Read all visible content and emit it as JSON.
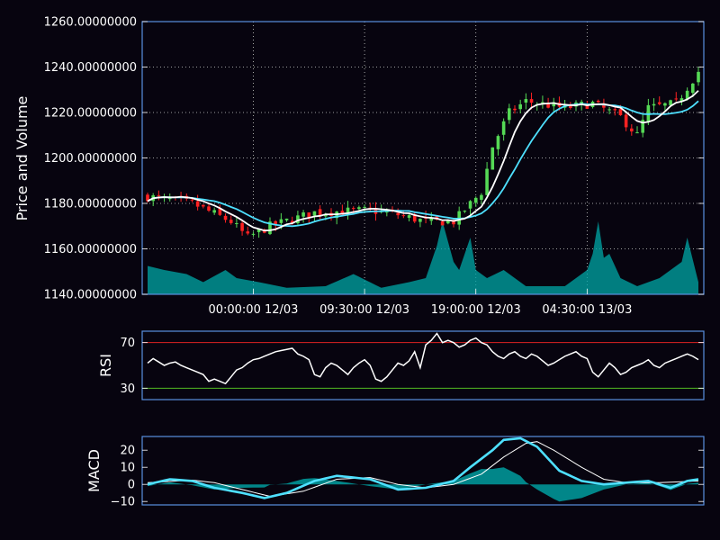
{
  "chart_data": [
    {
      "type": "candlestick",
      "ylabel": "Price and Volume",
      "ylim": [
        1140,
        1260
      ],
      "yticks": [
        1140,
        1160,
        1180,
        1200,
        1220,
        1240,
        1260
      ],
      "ytick_labels": [
        "1140.00000000",
        "1160.00000000",
        "1180.00000000",
        "1200.00000000",
        "1220.00000000",
        "1240.00000000",
        "1260.00000000"
      ],
      "xticks": [
        {
          "index": 19,
          "label": "00:00:00 12/03"
        },
        {
          "index": 39,
          "label": "09:30:00 12/03"
        },
        {
          "index": 59,
          "label": "19:00:00 12/03"
        },
        {
          "index": 79,
          "label": "04:30:00 13/03"
        }
      ],
      "candle_count": 100,
      "price_path": [
        [
          0,
          1183
        ],
        [
          8,
          1180
        ],
        [
          15,
          1172
        ],
        [
          18,
          1165
        ],
        [
          22,
          1170
        ],
        [
          30,
          1176
        ],
        [
          40,
          1177
        ],
        [
          45,
          1175
        ],
        [
          50,
          1172
        ],
        [
          55,
          1172
        ],
        [
          60,
          1185
        ],
        [
          62,
          1205
        ],
        [
          65,
          1220
        ],
        [
          68,
          1225
        ],
        [
          75,
          1222
        ],
        [
          80,
          1224
        ],
        [
          85,
          1218
        ],
        [
          88,
          1210
        ],
        [
          90,
          1222
        ],
        [
          95,
          1224
        ],
        [
          99,
          1238
        ]
      ],
      "ma_fast_color": "#ffffff",
      "ma_slow_color": "#4ee0ff",
      "up_color": "#55d955",
      "down_color": "#ff2222",
      "volume_color": "#00a7a7",
      "volume_path": [
        [
          0,
          0.35
        ],
        [
          3,
          0.3
        ],
        [
          7,
          0.25
        ],
        [
          10,
          0.15
        ],
        [
          14,
          0.3
        ],
        [
          16,
          0.2
        ],
        [
          20,
          0.15
        ],
        [
          25,
          0.08
        ],
        [
          32,
          0.1
        ],
        [
          37,
          0.25
        ],
        [
          42,
          0.08
        ],
        [
          47,
          0.15
        ],
        [
          50,
          0.2
        ],
        [
          52,
          0.6
        ],
        [
          53,
          0.9
        ],
        [
          55,
          0.4
        ],
        [
          56,
          0.3
        ],
        [
          57,
          0.5
        ],
        [
          58,
          0.7
        ],
        [
          59,
          0.3
        ],
        [
          61,
          0.2
        ],
        [
          64,
          0.3
        ],
        [
          68,
          0.1
        ],
        [
          75,
          0.1
        ],
        [
          79,
          0.3
        ],
        [
          80,
          0.5
        ],
        [
          81,
          0.9
        ],
        [
          82,
          0.45
        ],
        [
          83,
          0.5
        ],
        [
          85,
          0.2
        ],
        [
          88,
          0.1
        ],
        [
          92,
          0.2
        ],
        [
          96,
          0.4
        ],
        [
          97,
          0.7
        ],
        [
          99,
          0.15
        ]
      ]
    },
    {
      "type": "line",
      "ylabel": "RSI",
      "ylim": [
        20,
        80
      ],
      "yticks": [
        30,
        70
      ],
      "ytick_labels": [
        "30",
        "70"
      ],
      "upper_line": 70,
      "lower_line": 30,
      "upper_color": "#dd2222",
      "lower_color": "#55bb22",
      "line_color": "#ffffff",
      "values": [
        52,
        56,
        53,
        50,
        52,
        53,
        50,
        48,
        46,
        44,
        42,
        36,
        38,
        36,
        34,
        40,
        46,
        48,
        52,
        55,
        56,
        58,
        60,
        62,
        63,
        64,
        65,
        60,
        58,
        55,
        42,
        40,
        48,
        52,
        50,
        46,
        42,
        48,
        52,
        55,
        50,
        38,
        36,
        40,
        46,
        52,
        50,
        54,
        62,
        48,
        68,
        72,
        78,
        70,
        72,
        70,
        66,
        68,
        72,
        74,
        70,
        68,
        62,
        58,
        56,
        60,
        62,
        58,
        56,
        60,
        58,
        54,
        50,
        52,
        55,
        58,
        60,
        62,
        58,
        56,
        44,
        40,
        46,
        52,
        48,
        42,
        44,
        48,
        50,
        52,
        55,
        50,
        48,
        52,
        54,
        56,
        58,
        60,
        58,
        55
      ]
    },
    {
      "type": "line",
      "ylabel": "MACD",
      "ylim": [
        -12,
        28
      ],
      "yticks": [
        -10,
        0,
        10,
        20
      ],
      "ytick_labels": [
        "−10",
        "0",
        "10",
        "20"
      ],
      "macd_color": "#4ee0ff",
      "signal_color": "#ffffff",
      "histogram_color": "#00a7a7",
      "macd_path": [
        [
          0,
          0
        ],
        [
          4,
          3
        ],
        [
          8,
          2
        ],
        [
          12,
          -2
        ],
        [
          17,
          -5
        ],
        [
          21,
          -8
        ],
        [
          25,
          -5
        ],
        [
          30,
          2
        ],
        [
          34,
          5
        ],
        [
          40,
          3
        ],
        [
          45,
          -3
        ],
        [
          50,
          -2
        ],
        [
          55,
          2
        ],
        [
          58,
          10
        ],
        [
          62,
          20
        ],
        [
          64,
          26
        ],
        [
          67,
          27
        ],
        [
          70,
          22
        ],
        [
          74,
          8
        ],
        [
          78,
          2
        ],
        [
          82,
          0
        ],
        [
          86,
          1
        ],
        [
          90,
          2
        ],
        [
          94,
          -2
        ],
        [
          97,
          2
        ],
        [
          99,
          3
        ]
      ],
      "signal_path": [
        [
          0,
          1
        ],
        [
          8,
          2.5
        ],
        [
          12,
          1
        ],
        [
          17,
          -3
        ],
        [
          22,
          -7
        ],
        [
          28,
          -4
        ],
        [
          34,
          3
        ],
        [
          40,
          4
        ],
        [
          45,
          0
        ],
        [
          50,
          -2
        ],
        [
          55,
          0
        ],
        [
          60,
          6
        ],
        [
          64,
          16
        ],
        [
          68,
          24
        ],
        [
          70,
          25
        ],
        [
          73,
          20
        ],
        [
          78,
          10
        ],
        [
          82,
          3
        ],
        [
          86,
          1
        ],
        [
          92,
          1
        ],
        [
          99,
          2
        ]
      ]
    }
  ]
}
